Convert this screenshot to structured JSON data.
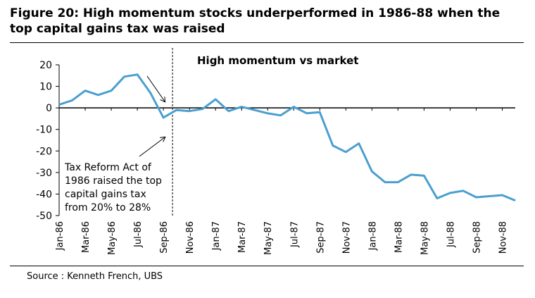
{
  "title": "Figure 20: High momentum stocks underperformed in 1986-88 when the top capital gains tax was raised",
  "source": "Source : Kenneth French, UBS",
  "colors": {
    "line": "#4a9fd0",
    "axis": "#000000"
  },
  "chart_data": {
    "type": "line",
    "title": "",
    "xlabel": "",
    "ylabel": "",
    "ylim": [
      -50,
      20
    ],
    "yticks": [
      20,
      10,
      0,
      -10,
      -20,
      -30,
      -40,
      -50
    ],
    "grid": false,
    "x": [
      "Jan-86",
      "Feb-86",
      "Mar-86",
      "Apr-86",
      "May-86",
      "Jun-86",
      "Jul-86",
      "Aug-86",
      "Sep-86",
      "Oct-86",
      "Nov-86",
      "Dec-86",
      "Jan-87",
      "Feb-87",
      "Mar-87",
      "Apr-87",
      "May-87",
      "Jun-87",
      "Jul-87",
      "Aug-87",
      "Sep-87",
      "Oct-87",
      "Nov-87",
      "Dec-87",
      "Jan-88",
      "Feb-88",
      "Mar-88",
      "Apr-88",
      "May-88",
      "Jun-88",
      "Jul-88",
      "Aug-88",
      "Sep-88",
      "Oct-88",
      "Nov-88",
      "Dec-88"
    ],
    "xtick_labels": [
      "Jan-86",
      "Mar-86",
      "May-86",
      "Jul-86",
      "Sep-86",
      "Nov-86",
      "Jan-87",
      "Mar-87",
      "May-87",
      "Jul-87",
      "Sep-87",
      "Nov-87",
      "Jan-88",
      "Mar-88",
      "May-88",
      "Jul-88",
      "Sep-88",
      "Nov-88"
    ],
    "series": [
      {
        "name": "High momentum vs market",
        "values": [
          1.5,
          3.5,
          8,
          6,
          8,
          14.5,
          15.5,
          7,
          -4.5,
          -1,
          -1.5,
          -0.5,
          4,
          -1.5,
          0.5,
          -1,
          -2.5,
          -3.5,
          0.5,
          -2.5,
          -2,
          -17.5,
          -20.5,
          -16.5,
          -29.5,
          -34.5,
          -34.5,
          -31,
          -31.5,
          -42,
          -39.5,
          -38.5,
          -41.5,
          -41,
          -40.5,
          -43
        ]
      }
    ],
    "vertical_marker": {
      "x": "Oct-86"
    },
    "annotation": {
      "lines": [
        "Tax Reform Act of",
        "1986 raised the top",
        "capital gains tax",
        "from 20% to 28%"
      ]
    }
  }
}
